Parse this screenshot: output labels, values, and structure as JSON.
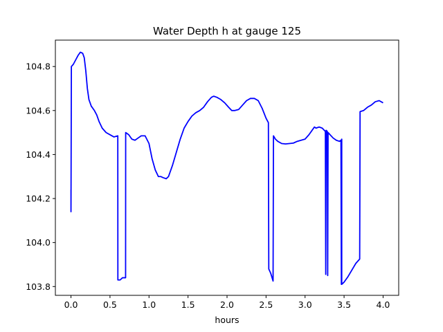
{
  "chart_data": {
    "type": "line",
    "title": "Water Depth h at gauge 125",
    "xlabel": "hours",
    "ylabel": "",
    "xlim": [
      -0.2,
      4.2
    ],
    "ylim": [
      103.76,
      104.92
    ],
    "xticks": [
      0.0,
      0.5,
      1.0,
      1.5,
      2.0,
      2.5,
      3.0,
      3.5,
      4.0
    ],
    "xtick_labels": [
      "0.0",
      "0.5",
      "1.0",
      "1.5",
      "2.0",
      "2.5",
      "3.0",
      "3.5",
      "4.0"
    ],
    "yticks": [
      103.8,
      104.0,
      104.2,
      104.4,
      104.6,
      104.8
    ],
    "ytick_labels": [
      "103.8",
      "104.0",
      "104.2",
      "104.4",
      "104.6",
      "104.8"
    ],
    "grid": false,
    "legend": "none",
    "series": [
      {
        "color": "#0000ff",
        "points": [
          [
            0.0,
            104.24
          ],
          [
            0.0,
            104.14
          ],
          [
            0.005,
            104.8
          ],
          [
            0.03,
            104.81
          ],
          [
            0.06,
            104.83
          ],
          [
            0.09,
            104.85
          ],
          [
            0.12,
            104.865
          ],
          [
            0.15,
            104.86
          ],
          [
            0.17,
            104.84
          ],
          [
            0.19,
            104.78
          ],
          [
            0.21,
            104.7
          ],
          [
            0.23,
            104.65
          ],
          [
            0.26,
            104.62
          ],
          [
            0.3,
            104.6
          ],
          [
            0.33,
            104.58
          ],
          [
            0.36,
            104.55
          ],
          [
            0.4,
            104.52
          ],
          [
            0.45,
            104.5
          ],
          [
            0.5,
            104.49
          ],
          [
            0.55,
            104.48
          ],
          [
            0.6,
            104.485
          ],
          [
            0.601,
            103.83
          ],
          [
            0.63,
            103.83
          ],
          [
            0.66,
            103.84
          ],
          [
            0.7,
            103.84
          ],
          [
            0.701,
            104.5
          ],
          [
            0.74,
            104.49
          ],
          [
            0.78,
            104.47
          ],
          [
            0.82,
            104.465
          ],
          [
            0.86,
            104.475
          ],
          [
            0.9,
            104.485
          ],
          [
            0.95,
            104.485
          ],
          [
            1.0,
            104.45
          ],
          [
            1.04,
            104.38
          ],
          [
            1.08,
            104.33
          ],
          [
            1.12,
            104.3
          ],
          [
            1.15,
            104.3
          ],
          [
            1.18,
            104.295
          ],
          [
            1.22,
            104.29
          ],
          [
            1.25,
            104.3
          ],
          [
            1.3,
            104.35
          ],
          [
            1.35,
            104.41
          ],
          [
            1.4,
            104.47
          ],
          [
            1.45,
            104.52
          ],
          [
            1.5,
            104.55
          ],
          [
            1.55,
            104.575
          ],
          [
            1.6,
            104.59
          ],
          [
            1.65,
            104.6
          ],
          [
            1.7,
            104.615
          ],
          [
            1.75,
            104.64
          ],
          [
            1.8,
            104.66
          ],
          [
            1.83,
            104.665
          ],
          [
            1.87,
            104.66
          ],
          [
            1.92,
            104.65
          ],
          [
            1.97,
            104.635
          ],
          [
            2.02,
            104.615
          ],
          [
            2.06,
            104.6
          ],
          [
            2.1,
            104.6
          ],
          [
            2.15,
            104.605
          ],
          [
            2.2,
            104.625
          ],
          [
            2.25,
            104.645
          ],
          [
            2.3,
            104.655
          ],
          [
            2.35,
            104.655
          ],
          [
            2.4,
            104.645
          ],
          [
            2.45,
            104.61
          ],
          [
            2.5,
            104.565
          ],
          [
            2.53,
            104.545
          ],
          [
            2.535,
            103.88
          ],
          [
            2.56,
            103.86
          ],
          [
            2.59,
            103.825
          ],
          [
            2.595,
            104.485
          ],
          [
            2.62,
            104.47
          ],
          [
            2.65,
            104.46
          ],
          [
            2.7,
            104.45
          ],
          [
            2.75,
            104.448
          ],
          [
            2.8,
            104.45
          ],
          [
            2.85,
            104.452
          ],
          [
            2.9,
            104.46
          ],
          [
            2.95,
            104.465
          ],
          [
            3.0,
            104.47
          ],
          [
            3.05,
            104.49
          ],
          [
            3.1,
            104.515
          ],
          [
            3.12,
            104.525
          ],
          [
            3.14,
            104.52
          ],
          [
            3.18,
            104.525
          ],
          [
            3.22,
            104.52
          ],
          [
            3.26,
            104.505
          ],
          [
            3.265,
            103.855
          ],
          [
            3.27,
            104.51
          ],
          [
            3.285,
            104.505
          ],
          [
            3.29,
            103.85
          ],
          [
            3.295,
            104.5
          ],
          [
            3.32,
            104.49
          ],
          [
            3.36,
            104.475
          ],
          [
            3.4,
            104.465
          ],
          [
            3.44,
            104.46
          ],
          [
            3.46,
            104.465
          ],
          [
            3.465,
            103.81
          ],
          [
            3.47,
            104.47
          ],
          [
            3.47,
            103.81
          ],
          [
            3.5,
            103.82
          ],
          [
            3.55,
            103.845
          ],
          [
            3.6,
            103.875
          ],
          [
            3.65,
            103.905
          ],
          [
            3.7,
            103.925
          ],
          [
            3.705,
            104.595
          ],
          [
            3.75,
            104.6
          ],
          [
            3.8,
            104.615
          ],
          [
            3.85,
            104.625
          ],
          [
            3.9,
            104.64
          ],
          [
            3.95,
            104.645
          ],
          [
            4.0,
            104.635
          ]
        ]
      }
    ]
  }
}
